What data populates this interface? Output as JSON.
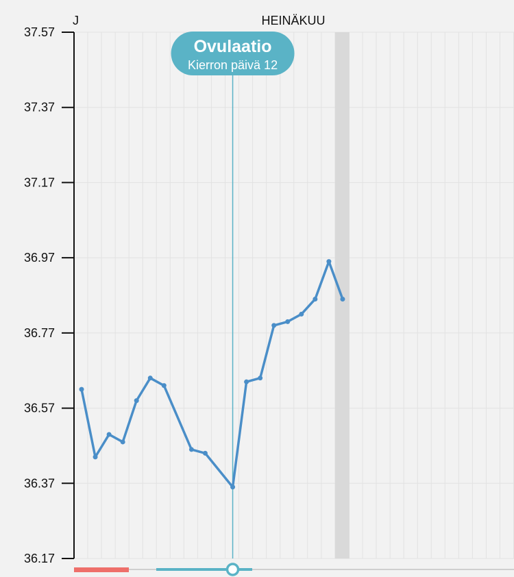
{
  "chart_data": {
    "type": "line",
    "month_label": "HEINÄKUU",
    "prev_month_label": "J",
    "y_ticks": [
      "37.57",
      "37.37",
      "37.17",
      "36.97",
      "36.77",
      "36.57",
      "36.37",
      "36.17"
    ],
    "ylim": [
      36.17,
      37.57
    ],
    "grid": true,
    "series": [
      {
        "values": [
          36.62,
          36.44,
          36.5,
          36.48,
          36.59,
          36.65,
          36.63,
          36.46,
          36.45,
          36.36,
          36.64,
          36.65,
          36.79,
          36.8,
          36.82,
          36.86,
          36.96,
          36.86
        ]
      }
    ],
    "x_days": [
      1,
      2,
      3,
      4,
      5,
      6,
      7,
      9,
      10,
      12,
      13,
      14,
      15,
      16,
      17,
      18,
      19,
      20
    ],
    "ovulation": {
      "title": "Ovulaatio",
      "subtitle": "Kierron päivä 12",
      "day": 12
    },
    "today_day": 20
  },
  "colors": {
    "line": "#4a8ec8",
    "ovulation": "#5ab3c6",
    "period_bar": "#ee6f6a",
    "today_band": "#d9d9d9",
    "grid": "#e2e2e2",
    "axis": "#111111"
  }
}
